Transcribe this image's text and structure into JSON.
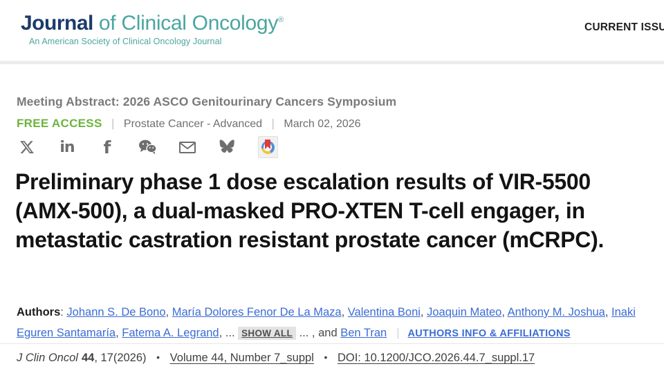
{
  "header": {
    "logo": {
      "word1": "Journal",
      "word2": " of Clinical Oncology",
      "registered": "®",
      "tagline": "An American Society of Clinical Oncology Journal"
    },
    "nav": {
      "current_issue": "CURRENT ISSUE"
    }
  },
  "article": {
    "eyebrow": "Meeting Abstract: 2026 ASCO Genitourinary Cancers Symposium",
    "access": {
      "label": "FREE ACCESS",
      "topic": "Prostate Cancer - Advanced",
      "date": "March 02, 2026"
    },
    "share_icons": [
      "x-icon",
      "linkedin-icon",
      "facebook-icon",
      "wechat-icon",
      "email-icon",
      "bluesky-icon",
      "papers-bookmark-icon"
    ],
    "title": "Preliminary phase 1 dose escalation results of VIR-5500 (AMX-500), a dual-masked PRO-XTEN T-cell engager, in metastatic castration resistant prostate cancer (mCRPC).",
    "authors": {
      "label": "Authors",
      "colon": ": ",
      "names": [
        "Johann S. De Bono",
        "María Dolores Fenor De La Maza",
        "Valentina Boni",
        "Joaquin Mateo",
        "Anthony M. Joshua",
        "Inaki Eguren Santamaría",
        "Fatema A. Legrand"
      ],
      "ellipsis": "...",
      "show_all": "SHOW ALL",
      "and_word": "and",
      "last_author": "Ben Tran",
      "info_link": "AUTHORS INFO & AFFILIATIONS"
    },
    "citation": {
      "journal_abbrev": "J Clin Oncol",
      "volume": "44",
      "issue_year": ", 17(2026)",
      "volume_link": "Volume 44, Number 7_suppl",
      "doi_link": "DOI: 10.1200/JCO.2026.44.7_suppl.17"
    }
  },
  "colors": {
    "logo_navy": "#1c3b6a",
    "logo_teal": "#4aa5a0",
    "free_access_green": "#6cb33f",
    "eyebrow_gray": "#7a7a7a",
    "link_blue": "#3b6cd4",
    "title_black": "#131313",
    "icon_gray": "#6e6e6e"
  }
}
